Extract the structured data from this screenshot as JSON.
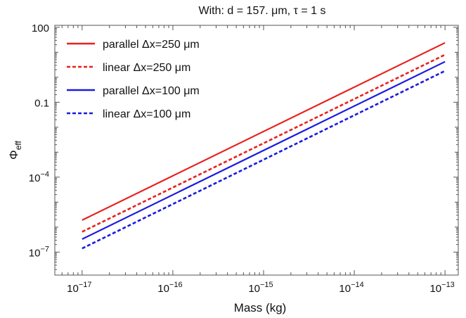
{
  "chart_data": {
    "type": "line",
    "title": "With: d = 157. μm, τ = 1 s",
    "xlabel": "Mass (kg)",
    "ylabel_main": "Φ",
    "ylabel_sub": "eff",
    "x_scale": "log",
    "y_scale": "log",
    "xlim": [
      5e-18,
      1.4e-13
    ],
    "ylim": [
      1.2e-08,
      120
    ],
    "grid": false,
    "legend_position": "top-left",
    "x_ticks": [
      {
        "value": 1e-17,
        "base": "10",
        "exp": "−17"
      },
      {
        "value": 1e-16,
        "base": "10",
        "exp": "−16"
      },
      {
        "value": 1e-15,
        "base": "10",
        "exp": "−15"
      },
      {
        "value": 1e-14,
        "base": "10",
        "exp": "−14"
      },
      {
        "value": 1e-13,
        "base": "10",
        "exp": "−13"
      }
    ],
    "y_ticks": [
      {
        "value": 1e-07,
        "base": "10",
        "exp": "−7"
      },
      {
        "value": 0.0001,
        "base": "10",
        "exp": "−4"
      },
      {
        "value": 0.1,
        "base": "0.1",
        "exp": ""
      },
      {
        "value": 100,
        "base": "100",
        "exp": ""
      }
    ],
    "series": [
      {
        "name": "parallel Δx=250 μm",
        "color": "#e8211d",
        "style": "solid",
        "x": [
          1e-17,
          1e-13
        ],
        "y": [
          1.9e-06,
          24
        ]
      },
      {
        "name": "linear Δx=250 μm",
        "color": "#e8211d",
        "style": "dashed",
        "x": [
          1e-17,
          1e-13
        ],
        "y": [
          6.5e-07,
          8
        ]
      },
      {
        "name": "parallel Δx=100 μm",
        "color": "#1a1ae0",
        "style": "solid",
        "x": [
          1e-17,
          1e-13
        ],
        "y": [
          3.3e-07,
          4.2
        ]
      },
      {
        "name": "linear Δx=100 μm",
        "color": "#1a1ae0",
        "style": "dashed",
        "x": [
          1e-17,
          1e-13
        ],
        "y": [
          1.4e-07,
          1.8
        ]
      }
    ]
  }
}
